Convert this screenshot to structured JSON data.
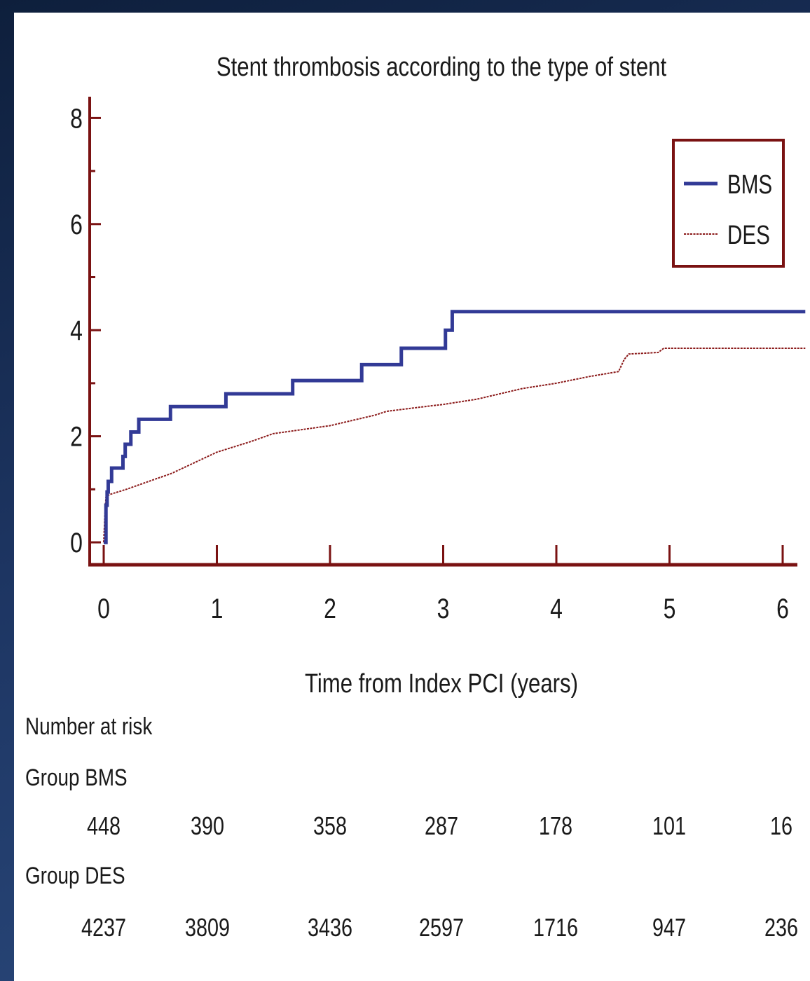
{
  "chart_data": {
    "type": "line",
    "title": "Stent thrombosis according to the type of stent",
    "xlabel": "Time from Index PCI (years)",
    "ylabel": "",
    "xlim": [
      0,
      6
    ],
    "ylim": [
      0,
      8
    ],
    "x_ticks": [
      "0",
      "1",
      "2",
      "3",
      "4",
      "5",
      "6"
    ],
    "y_ticks": [
      "0",
      "2",
      "4",
      "6",
      "8"
    ],
    "legend_position": "top-right",
    "series": [
      {
        "name": "BMS",
        "color": "#323a96",
        "style": "solid",
        "step": true,
        "points": [
          [
            0,
            0
          ],
          [
            0.02,
            0.7
          ],
          [
            0.03,
            0.95
          ],
          [
            0.04,
            1.15
          ],
          [
            0.07,
            1.4
          ],
          [
            0.17,
            1.62
          ],
          [
            0.19,
            1.85
          ],
          [
            0.24,
            2.08
          ],
          [
            0.31,
            2.32
          ],
          [
            0.59,
            2.56
          ],
          [
            1.08,
            2.8
          ],
          [
            1.67,
            3.05
          ],
          [
            2.28,
            3.35
          ],
          [
            2.63,
            3.66
          ],
          [
            3.02,
            4.0
          ],
          [
            3.08,
            4.35
          ],
          [
            6.2,
            4.35
          ]
        ]
      },
      {
        "name": "DES",
        "color": "#8b1a1a",
        "style": "dotted",
        "step": false,
        "points": [
          [
            0,
            0
          ],
          [
            0.01,
            0.5
          ],
          [
            0.02,
            0.85
          ],
          [
            0.05,
            0.9
          ],
          [
            0.2,
            1.0
          ],
          [
            0.4,
            1.15
          ],
          [
            0.6,
            1.3
          ],
          [
            0.8,
            1.5
          ],
          [
            1.0,
            1.7
          ],
          [
            1.3,
            1.9
          ],
          [
            1.5,
            2.05
          ],
          [
            2.0,
            2.2
          ],
          [
            2.2,
            2.3
          ],
          [
            2.4,
            2.4
          ],
          [
            2.5,
            2.47
          ],
          [
            2.8,
            2.55
          ],
          [
            3.0,
            2.6
          ],
          [
            3.3,
            2.7
          ],
          [
            3.5,
            2.8
          ],
          [
            3.7,
            2.9
          ],
          [
            4.0,
            3.0
          ],
          [
            4.3,
            3.13
          ],
          [
            4.55,
            3.22
          ],
          [
            4.6,
            3.45
          ],
          [
            4.64,
            3.55
          ],
          [
            4.9,
            3.58
          ],
          [
            4.95,
            3.66
          ],
          [
            6.2,
            3.66
          ]
        ]
      }
    ],
    "number_at_risk": {
      "heading": "Number at risk",
      "groups": [
        {
          "label": "Group BMS",
          "values": [
            "448",
            "390",
            "358",
            "287",
            "178",
            "101",
            "16"
          ]
        },
        {
          "label": "Group DES",
          "values": [
            "4237",
            "3809",
            "3436",
            "2597",
            "1716",
            "947",
            "236"
          ]
        }
      ]
    }
  }
}
